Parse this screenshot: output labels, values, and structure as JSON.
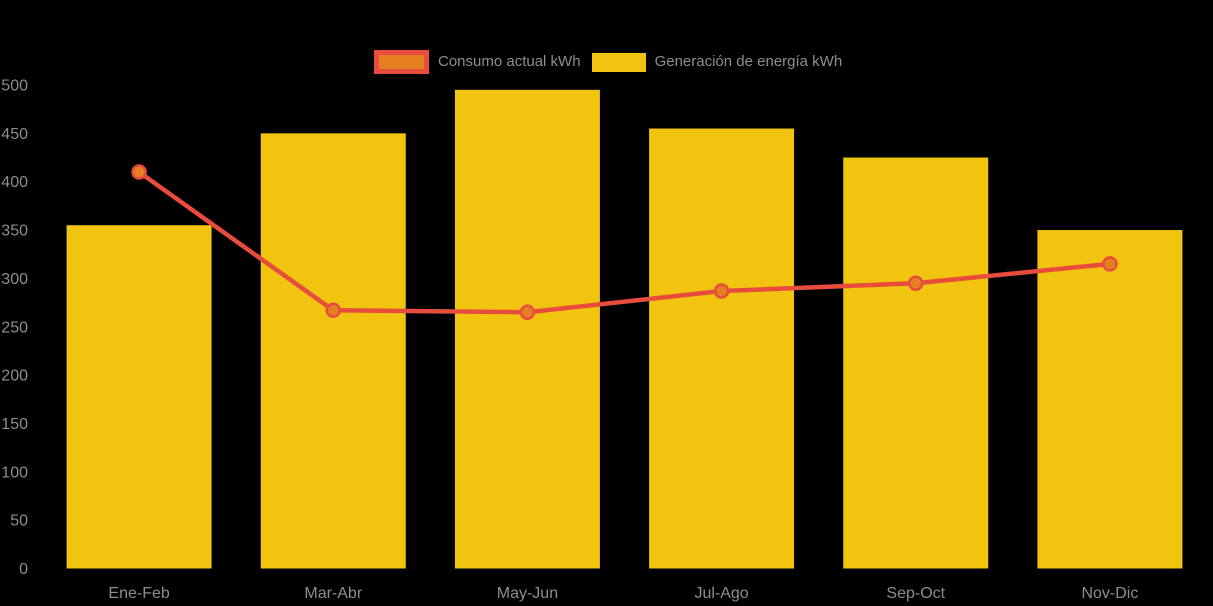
{
  "chart": {
    "background_color": "#000000",
    "text_color": "#8e8e8e",
    "legend": {
      "items": [
        {
          "label": "Consumo actual kWh",
          "icon": "bordered-rect",
          "fill": "#E67E22",
          "border": "#E74C3C"
        },
        {
          "label": "Generación de energía kWh",
          "icon": "solid-rect",
          "fill": "#F1C40F"
        }
      ]
    }
  },
  "chart_data": {
    "type": "bar+line",
    "categories": [
      "Ene-Feb",
      "Mar-Abr",
      "May-Jun",
      "Jul-Ago",
      "Sep-Oct",
      "Nov-Dic"
    ],
    "series": [
      {
        "name": "Consumo actual kWh",
        "type": "line",
        "color": "#E74C3C",
        "marker_fill": "#E67E22",
        "values": [
          410,
          267,
          265,
          287,
          295,
          315
        ]
      },
      {
        "name": "Generación de energía kWh",
        "type": "bar",
        "color": "#F1C40F",
        "values": [
          355,
          450,
          495,
          455,
          425,
          350
        ]
      }
    ],
    "title": "",
    "xlabel": "",
    "ylabel": "",
    "ylim": [
      0,
      500
    ],
    "ytick_step": 50,
    "yticks": [
      0,
      50,
      100,
      150,
      200,
      250,
      300,
      350,
      400,
      450,
      500
    ],
    "grid": false,
    "legend_position": "top-center"
  }
}
